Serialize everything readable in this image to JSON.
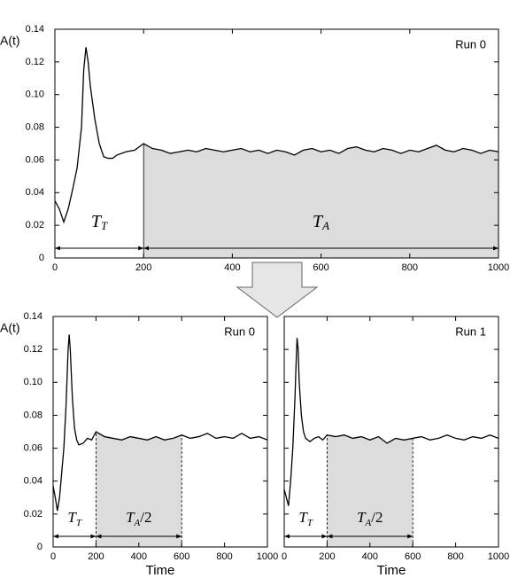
{
  "chart_data": [
    {
      "type": "line",
      "title": "Run 0",
      "ylabel": "A(t)",
      "color": "#000000",
      "shade_color": "#dcdcdc",
      "xlim": [
        0,
        1000
      ],
      "xticks": [
        0,
        200,
        400,
        600,
        800,
        1000
      ],
      "ylim": [
        0,
        0.14
      ],
      "yticks": [
        0,
        {
          "value": 0.02,
          "label": "0.02"
        },
        {
          "value": 0.04,
          "label": "0.04"
        },
        {
          "value": 0.06,
          "label": "0.06"
        },
        {
          "value": 0.08,
          "label": "0.08"
        },
        {
          "value": 0.1,
          "label": "0.10"
        },
        {
          "value": 0.12,
          "label": "0.12"
        },
        {
          "value": 0.14,
          "label": "0.14"
        }
      ],
      "x": [
        0,
        10,
        20,
        30,
        40,
        50,
        60,
        65,
        70,
        75,
        80,
        90,
        100,
        110,
        120,
        130,
        140,
        160,
        180,
        200,
        220,
        240,
        260,
        280,
        300,
        320,
        340,
        360,
        380,
        400,
        420,
        440,
        460,
        480,
        500,
        520,
        540,
        560,
        580,
        600,
        620,
        640,
        660,
        680,
        700,
        720,
        740,
        760,
        780,
        800,
        820,
        840,
        860,
        880,
        900,
        920,
        940,
        960,
        980,
        1000
      ],
      "values": [
        0.035,
        0.03,
        0.022,
        0.03,
        0.042,
        0.055,
        0.08,
        0.115,
        0.129,
        0.12,
        0.105,
        0.085,
        0.07,
        0.062,
        0.061,
        0.061,
        0.063,
        0.065,
        0.066,
        0.07,
        0.067,
        0.066,
        0.064,
        0.065,
        0.066,
        0.065,
        0.067,
        0.066,
        0.065,
        0.066,
        0.067,
        0.065,
        0.066,
        0.064,
        0.066,
        0.065,
        0.063,
        0.066,
        0.067,
        0.065,
        0.066,
        0.064,
        0.067,
        0.068,
        0.066,
        0.065,
        0.067,
        0.066,
        0.064,
        0.066,
        0.065,
        0.067,
        0.069,
        0.066,
        0.065,
        0.067,
        0.066,
        0.064,
        0.066,
        0.065
      ],
      "shaded_range": [
        200,
        1000
      ],
      "spans": [
        {
          "range": [
            0,
            200
          ],
          "label": {
            "main": "T",
            "sub": "T"
          }
        },
        {
          "range": [
            200,
            1000
          ],
          "label": {
            "main": "T",
            "sub": "A"
          }
        }
      ]
    },
    {
      "type": "line",
      "title": "Run 0",
      "ylabel": "A(t)",
      "xlabel": "Time",
      "color": "#000000",
      "shade_color": "#dcdcdc",
      "xlim": [
        0,
        1000
      ],
      "xticks": [
        0,
        200,
        400,
        600,
        800,
        1000
      ],
      "ylim": [
        0,
        0.14
      ],
      "yticks": [
        0,
        {
          "value": 0.02,
          "label": "0.02"
        },
        {
          "value": 0.04,
          "label": "0.04"
        },
        {
          "value": 0.06,
          "label": "0.06"
        },
        {
          "value": 0.08,
          "label": "0.08"
        },
        {
          "value": 0.1,
          "label": "0.10"
        },
        {
          "value": 0.12,
          "label": "0.12"
        },
        {
          "value": 0.14,
          "label": "0.14"
        }
      ],
      "x": [
        0,
        10,
        20,
        30,
        40,
        50,
        60,
        70,
        75,
        80,
        90,
        100,
        110,
        120,
        140,
        160,
        180,
        200,
        240,
        280,
        320,
        360,
        400,
        440,
        480,
        520,
        560,
        600,
        640,
        680,
        720,
        760,
        800,
        840,
        880,
        920,
        960,
        1000
      ],
      "values": [
        0.037,
        0.03,
        0.022,
        0.03,
        0.045,
        0.06,
        0.085,
        0.12,
        0.129,
        0.12,
        0.09,
        0.072,
        0.065,
        0.062,
        0.063,
        0.066,
        0.065,
        0.07,
        0.067,
        0.066,
        0.065,
        0.067,
        0.066,
        0.065,
        0.067,
        0.065,
        0.066,
        0.068,
        0.066,
        0.067,
        0.069,
        0.066,
        0.067,
        0.066,
        0.069,
        0.066,
        0.067,
        0.065
      ],
      "shaded_range": [
        200,
        600
      ],
      "spans": [
        {
          "range": [
            0,
            200
          ],
          "label": {
            "main": "T",
            "sub": "T"
          }
        },
        {
          "range": [
            200,
            600
          ],
          "label": {
            "main": "T",
            "sub": "A",
            "suffix": "/2"
          }
        }
      ]
    },
    {
      "type": "line",
      "title": "Run 1",
      "xlabel": "Time",
      "color": "#000000",
      "shade_color": "#dcdcdc",
      "ytick_labels": false,
      "xlim": [
        0,
        1000
      ],
      "xticks": [
        0,
        200,
        400,
        600,
        800,
        1000
      ],
      "ylim": [
        0,
        0.14
      ],
      "yticks": [
        0,
        0.02,
        0.04,
        0.06,
        0.08,
        0.1,
        0.12,
        0.14
      ],
      "x": [
        0,
        10,
        20,
        30,
        40,
        50,
        55,
        60,
        65,
        70,
        80,
        90,
        100,
        110,
        120,
        140,
        160,
        180,
        200,
        240,
        280,
        320,
        360,
        400,
        440,
        480,
        520,
        560,
        600,
        640,
        680,
        720,
        760,
        800,
        840,
        880,
        920,
        960,
        1000
      ],
      "values": [
        0.035,
        0.03,
        0.025,
        0.04,
        0.06,
        0.09,
        0.11,
        0.127,
        0.12,
        0.1,
        0.08,
        0.07,
        0.066,
        0.065,
        0.064,
        0.066,
        0.067,
        0.065,
        0.068,
        0.067,
        0.068,
        0.066,
        0.067,
        0.065,
        0.067,
        0.063,
        0.066,
        0.065,
        0.066,
        0.067,
        0.065,
        0.066,
        0.068,
        0.066,
        0.065,
        0.067,
        0.066,
        0.068,
        0.066
      ],
      "shaded_range": [
        200,
        600
      ],
      "spans": [
        {
          "range": [
            0,
            200
          ],
          "label": {
            "main": "T",
            "sub": "T"
          }
        },
        {
          "range": [
            200,
            600
          ],
          "label": {
            "main": "T",
            "sub": "A",
            "suffix": "/2"
          }
        }
      ]
    }
  ]
}
